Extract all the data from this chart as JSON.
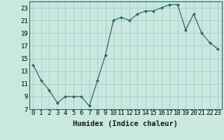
{
  "x": [
    0,
    1,
    2,
    3,
    4,
    5,
    6,
    7,
    8,
    9,
    10,
    11,
    12,
    13,
    14,
    15,
    16,
    17,
    18,
    19,
    20,
    21,
    22,
    23
  ],
  "y": [
    14,
    11.5,
    10,
    8,
    9,
    9,
    9,
    7.5,
    11.5,
    15.5,
    21,
    21.5,
    21,
    22,
    22.5,
    22.5,
    23,
    23.5,
    23.5,
    19.5,
    22,
    19,
    17.5,
    16.5
  ],
  "line_color": "#2e6b5e",
  "marker_color": "#2e6b5e",
  "bg_color": "#c8e8e0",
  "grid_color": "#a8ccc4",
  "xlabel": "Humidex (Indice chaleur)",
  "xlim": [
    -0.5,
    23.5
  ],
  "ylim": [
    7,
    24
  ],
  "yticks": [
    7,
    9,
    11,
    13,
    15,
    17,
    19,
    21,
    23
  ],
  "xticks": [
    0,
    1,
    2,
    3,
    4,
    5,
    6,
    7,
    8,
    9,
    10,
    11,
    12,
    13,
    14,
    15,
    16,
    17,
    18,
    19,
    20,
    21,
    22,
    23
  ],
  "xlabel_fontsize": 7.5,
  "tick_fontsize": 6.5
}
